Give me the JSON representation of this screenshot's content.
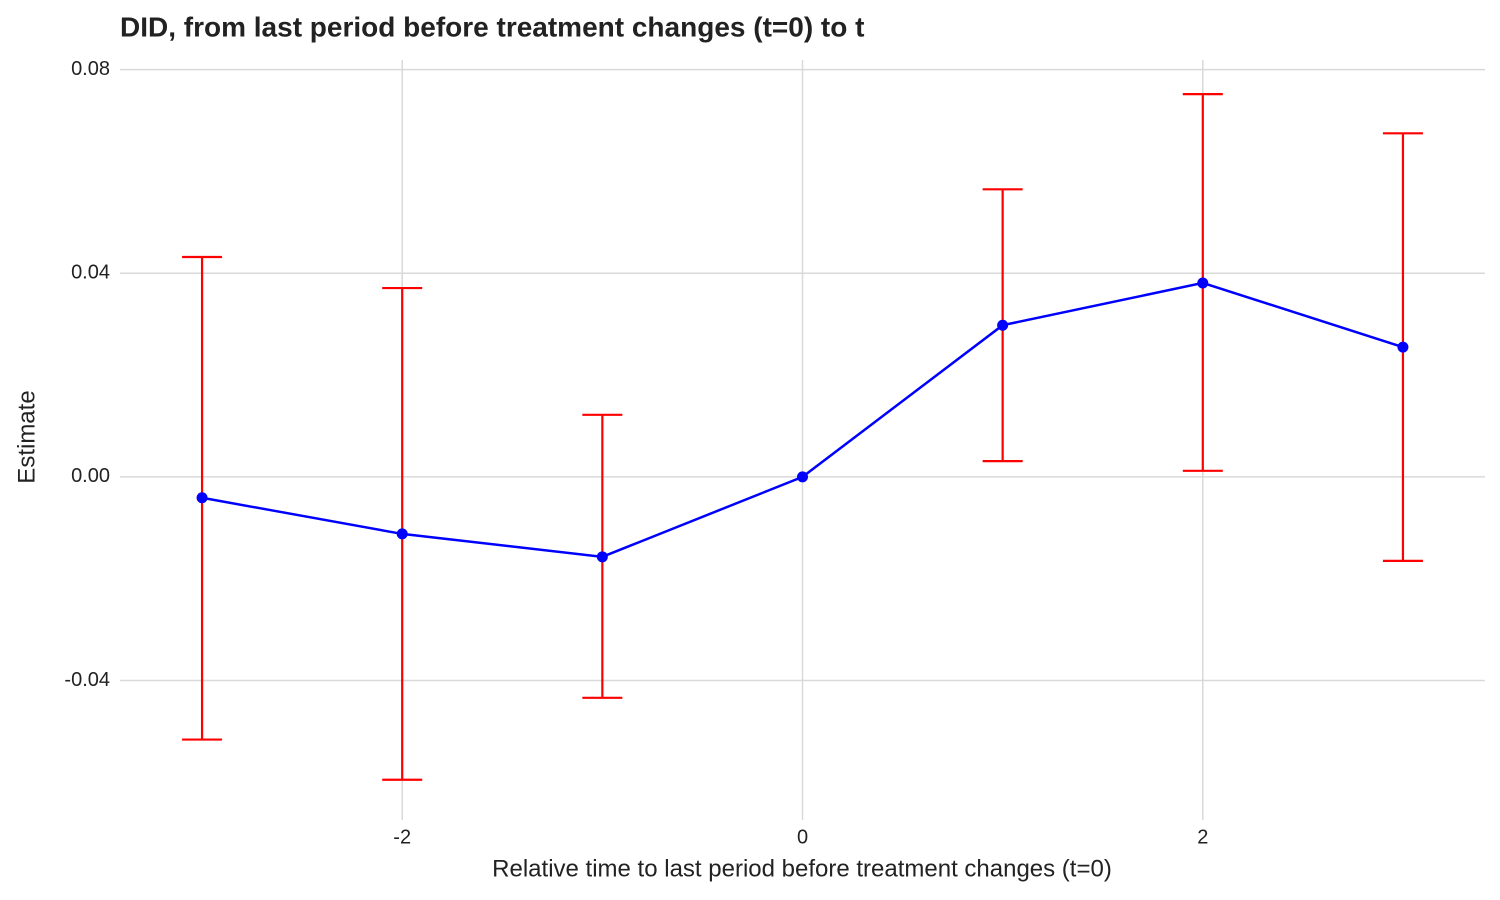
{
  "chart_data": {
    "type": "line",
    "title": "DID, from last period before treatment changes (t=0) to t",
    "x_label": "Relative time to last period before treatment changes (t=0)",
    "y_label": "Estimate",
    "x": [
      -3,
      -2,
      -1,
      0,
      1,
      2,
      3
    ],
    "series": [
      {
        "color": "#0000ff",
        "error_color": "#ff0000",
        "values": [
          -0.0041,
          -0.0112,
          -0.0157,
          0,
          0.0298,
          0.0381,
          0.0255
        ],
        "lower": [
          -0.0516,
          -0.0595,
          -0.0434,
          null,
          0.0031,
          0.0012,
          -0.0165
        ],
        "upper": [
          0.0432,
          0.0371,
          0.0122,
          null,
          0.0565,
          0.0752,
          0.0675
        ]
      }
    ],
    "xlim": [
      -3.41,
      3.41
    ],
    "ylim": [
      -0.0674,
      0.0819
    ],
    "xticks": [
      -2,
      0,
      2
    ],
    "yticks": [
      {
        "value": -0.04,
        "label": "-0.04"
      },
      {
        "value": 0,
        "label": "0.00"
      },
      {
        "value": 0.04,
        "label": "0.04"
      },
      {
        "value": 0.08,
        "label": "0.08"
      }
    ],
    "grid": true
  }
}
